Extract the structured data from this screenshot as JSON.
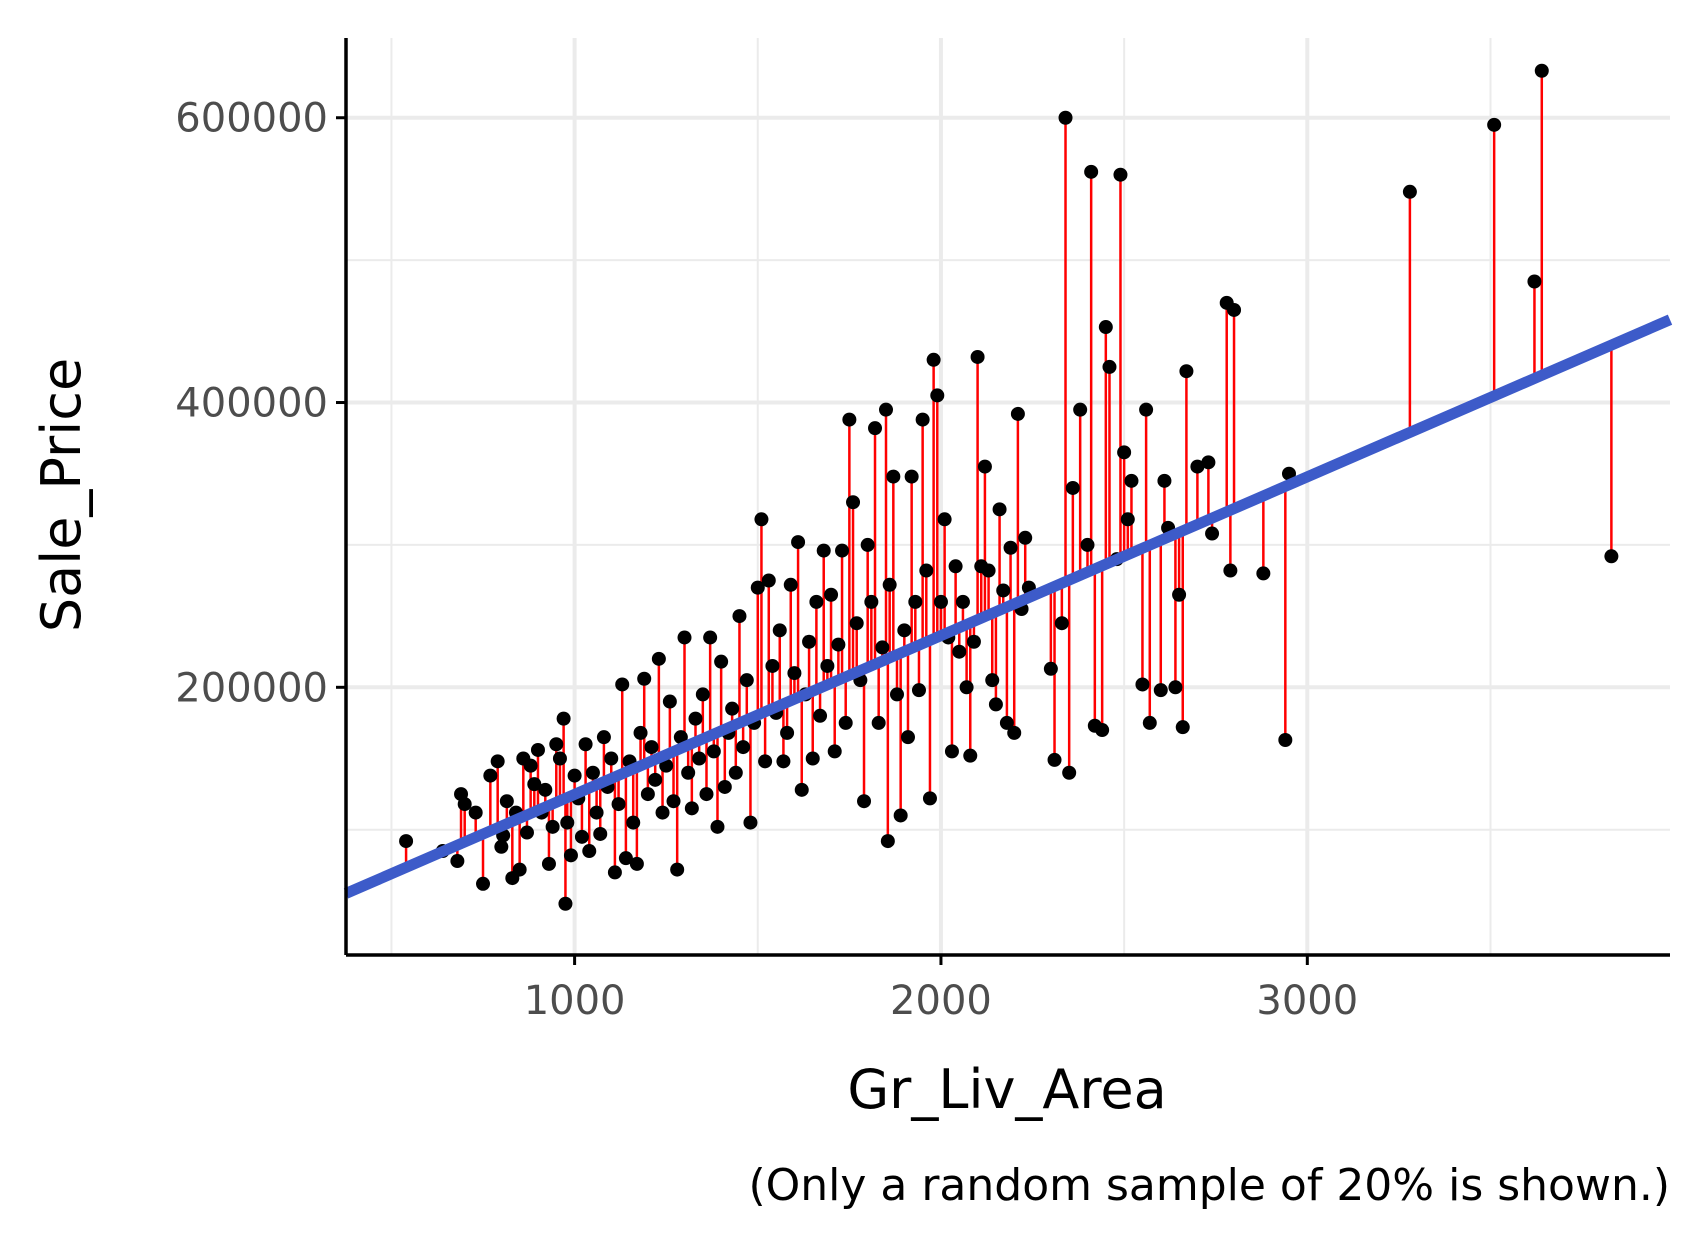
{
  "chart_data": {
    "type": "scatter",
    "xlabel": "Gr_Liv_Area",
    "ylabel": "Sale_Price",
    "caption": "(Only a random sample of 20% is shown.)",
    "xlim": [
      376,
      3990
    ],
    "ylim": [
      12000,
      656000
    ],
    "x_ticks": [
      {
        "value": 1000,
        "label": "1000"
      },
      {
        "value": 2000,
        "label": "2000"
      },
      {
        "value": 3000,
        "label": "3000"
      }
    ],
    "y_ticks": [
      {
        "value": 200000,
        "label": "200000"
      },
      {
        "value": 400000,
        "label": "400000"
      },
      {
        "value": 600000,
        "label": "600000"
      }
    ],
    "grid": true,
    "regression_line": {
      "intercept": 13300,
      "slope": 111.5
    },
    "colors": {
      "points": "#000000",
      "residuals": "#ff0000",
      "fit_line": "#3d5bc9",
      "grid": "#ebebeb",
      "axis": "#000000"
    },
    "points": [
      [
        540,
        92000
      ],
      [
        640,
        85000
      ],
      [
        680,
        78000
      ],
      [
        690,
        125000
      ],
      [
        700,
        118000
      ],
      [
        730,
        112000
      ],
      [
        750,
        62000
      ],
      [
        770,
        138000
      ],
      [
        790,
        148000
      ],
      [
        800,
        88000
      ],
      [
        805,
        96000
      ],
      [
        815,
        120000
      ],
      [
        830,
        66000
      ],
      [
        840,
        112000
      ],
      [
        850,
        72000
      ],
      [
        860,
        150000
      ],
      [
        870,
        98000
      ],
      [
        880,
        145000
      ],
      [
        890,
        132000
      ],
      [
        900,
        156000
      ],
      [
        910,
        112000
      ],
      [
        920,
        128000
      ],
      [
        930,
        76000
      ],
      [
        940,
        102000
      ],
      [
        950,
        160000
      ],
      [
        960,
        150000
      ],
      [
        970,
        178000
      ],
      [
        975,
        48000
      ],
      [
        980,
        105000
      ],
      [
        990,
        82000
      ],
      [
        1000,
        138000
      ],
      [
        1010,
        122000
      ],
      [
        1020,
        95000
      ],
      [
        1030,
        160000
      ],
      [
        1040,
        85000
      ],
      [
        1050,
        140000
      ],
      [
        1060,
        112000
      ],
      [
        1070,
        97000
      ],
      [
        1080,
        165000
      ],
      [
        1090,
        130000
      ],
      [
        1100,
        150000
      ],
      [
        1110,
        70000
      ],
      [
        1120,
        118000
      ],
      [
        1130,
        202000
      ],
      [
        1140,
        80000
      ],
      [
        1150,
        148000
      ],
      [
        1160,
        105000
      ],
      [
        1170,
        76000
      ],
      [
        1180,
        168000
      ],
      [
        1190,
        206000
      ],
      [
        1200,
        125000
      ],
      [
        1210,
        158000
      ],
      [
        1220,
        135000
      ],
      [
        1230,
        220000
      ],
      [
        1240,
        112000
      ],
      [
        1250,
        145000
      ],
      [
        1260,
        190000
      ],
      [
        1270,
        120000
      ],
      [
        1280,
        72000
      ],
      [
        1290,
        165000
      ],
      [
        1300,
        235000
      ],
      [
        1310,
        140000
      ],
      [
        1320,
        115000
      ],
      [
        1330,
        178000
      ],
      [
        1340,
        150000
      ],
      [
        1350,
        195000
      ],
      [
        1360,
        125000
      ],
      [
        1370,
        235000
      ],
      [
        1380,
        155000
      ],
      [
        1390,
        102000
      ],
      [
        1400,
        218000
      ],
      [
        1410,
        130000
      ],
      [
        1420,
        168000
      ],
      [
        1430,
        185000
      ],
      [
        1440,
        140000
      ],
      [
        1450,
        250000
      ],
      [
        1460,
        158000
      ],
      [
        1470,
        205000
      ],
      [
        1480,
        105000
      ],
      [
        1490,
        175000
      ],
      [
        1500,
        270000
      ],
      [
        1510,
        318000
      ],
      [
        1520,
        148000
      ],
      [
        1530,
        275000
      ],
      [
        1540,
        215000
      ],
      [
        1550,
        182000
      ],
      [
        1560,
        240000
      ],
      [
        1570,
        148000
      ],
      [
        1580,
        168000
      ],
      [
        1590,
        272000
      ],
      [
        1600,
        210000
      ],
      [
        1610,
        302000
      ],
      [
        1620,
        128000
      ],
      [
        1630,
        195000
      ],
      [
        1640,
        232000
      ],
      [
        1650,
        150000
      ],
      [
        1660,
        260000
      ],
      [
        1670,
        180000
      ],
      [
        1680,
        296000
      ],
      [
        1690,
        215000
      ],
      [
        1700,
        265000
      ],
      [
        1710,
        155000
      ],
      [
        1720,
        230000
      ],
      [
        1730,
        296000
      ],
      [
        1740,
        175000
      ],
      [
        1750,
        388000
      ],
      [
        1760,
        330000
      ],
      [
        1770,
        245000
      ],
      [
        1780,
        205000
      ],
      [
        1790,
        120000
      ],
      [
        1800,
        300000
      ],
      [
        1810,
        260000
      ],
      [
        1820,
        382000
      ],
      [
        1830,
        175000
      ],
      [
        1840,
        228000
      ],
      [
        1850,
        395000
      ],
      [
        1855,
        92000
      ],
      [
        1860,
        272000
      ],
      [
        1870,
        348000
      ],
      [
        1880,
        195000
      ],
      [
        1890,
        110000
      ],
      [
        1900,
        240000
      ],
      [
        1910,
        165000
      ],
      [
        1920,
        348000
      ],
      [
        1930,
        260000
      ],
      [
        1940,
        198000
      ],
      [
        1950,
        388000
      ],
      [
        1960,
        282000
      ],
      [
        1970,
        122000
      ],
      [
        1980,
        430000
      ],
      [
        1990,
        405000
      ],
      [
        2000,
        260000
      ],
      [
        2010,
        318000
      ],
      [
        2020,
        235000
      ],
      [
        2030,
        155000
      ],
      [
        2040,
        285000
      ],
      [
        2050,
        225000
      ],
      [
        2060,
        260000
      ],
      [
        2070,
        200000
      ],
      [
        2080,
        152000
      ],
      [
        2090,
        232000
      ],
      [
        2100,
        432000
      ],
      [
        2110,
        285000
      ],
      [
        2120,
        355000
      ],
      [
        2130,
        282000
      ],
      [
        2140,
        205000
      ],
      [
        2150,
        188000
      ],
      [
        2160,
        325000
      ],
      [
        2170,
        268000
      ],
      [
        2180,
        175000
      ],
      [
        2190,
        298000
      ],
      [
        2200,
        168000
      ],
      [
        2210,
        392000
      ],
      [
        2220,
        255000
      ],
      [
        2230,
        305000
      ],
      [
        2240,
        270000
      ],
      [
        2300,
        213000
      ],
      [
        2310,
        149000
      ],
      [
        2330,
        245000
      ],
      [
        2340,
        600000
      ],
      [
        2350,
        140000
      ],
      [
        2360,
        340000
      ],
      [
        2380,
        395000
      ],
      [
        2400,
        300000
      ],
      [
        2410,
        562000
      ],
      [
        2420,
        173000
      ],
      [
        2440,
        170000
      ],
      [
        2450,
        453000
      ],
      [
        2460,
        425000
      ],
      [
        2480,
        290000
      ],
      [
        2490,
        560000
      ],
      [
        2500,
        365000
      ],
      [
        2510,
        318000
      ],
      [
        2520,
        345000
      ],
      [
        2550,
        202000
      ],
      [
        2560,
        395000
      ],
      [
        2570,
        175000
      ],
      [
        2600,
        198000
      ],
      [
        2610,
        345000
      ],
      [
        2620,
        312000
      ],
      [
        2640,
        200000
      ],
      [
        2650,
        265000
      ],
      [
        2660,
        172000
      ],
      [
        2670,
        422000
      ],
      [
        2700,
        355000
      ],
      [
        2730,
        358000
      ],
      [
        2740,
        308000
      ],
      [
        2780,
        470000
      ],
      [
        2790,
        282000
      ],
      [
        2800,
        465000
      ],
      [
        2880,
        280000
      ],
      [
        2940,
        163000
      ],
      [
        2950,
        350000
      ],
      [
        3280,
        548000
      ],
      [
        3510,
        595000
      ],
      [
        3620,
        485000
      ],
      [
        3640,
        633000
      ],
      [
        3830,
        292000
      ]
    ]
  }
}
